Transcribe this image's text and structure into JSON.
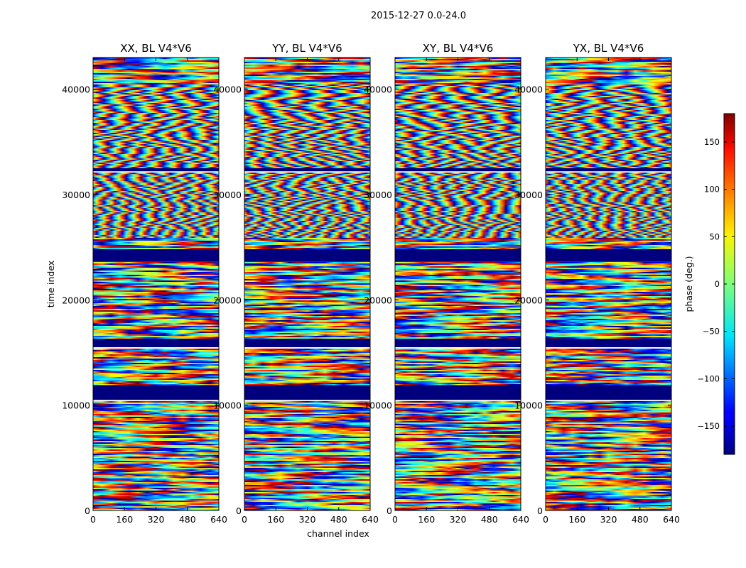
{
  "figure": {
    "suptitle": "2015-12-27 0.0-24.0"
  },
  "chart_data": {
    "type": "heatmap",
    "title": "2015-12-27 0.0-24.0",
    "xlabel": "channel index",
    "ylabel": "time index",
    "xlim": [
      0,
      640
    ],
    "ylim": [
      0,
      43000
    ],
    "x_ticks": [
      0,
      160,
      320,
      480,
      640
    ],
    "y_ticks": [
      0,
      10000,
      20000,
      30000,
      40000
    ],
    "panels": [
      {
        "name": "XX",
        "title": "XX, BL V4*V6"
      },
      {
        "name": "YY",
        "title": "YY, BL V4*V6"
      },
      {
        "name": "XY",
        "title": "XY, BL V4*V6"
      },
      {
        "name": "YX",
        "title": "YX, BL V4*V6"
      }
    ],
    "flagged_time_ranges": [
      [
        32200,
        32500
      ],
      [
        23600,
        24800
      ],
      [
        15500,
        16300
      ],
      [
        10500,
        11900
      ]
    ],
    "colorbar": {
      "label": "phase (deg.)",
      "colormap": "jet",
      "range": [
        -180,
        180
      ],
      "ticks": [
        -150,
        -100,
        -50,
        0,
        50,
        100,
        150
      ],
      "tick_labels": [
        "−150",
        "−100",
        "−50",
        "0",
        "50",
        "100",
        "150"
      ]
    }
  },
  "colors": {
    "flagged": "#00007f",
    "axis": "#000000",
    "background": "#ffffff"
  }
}
